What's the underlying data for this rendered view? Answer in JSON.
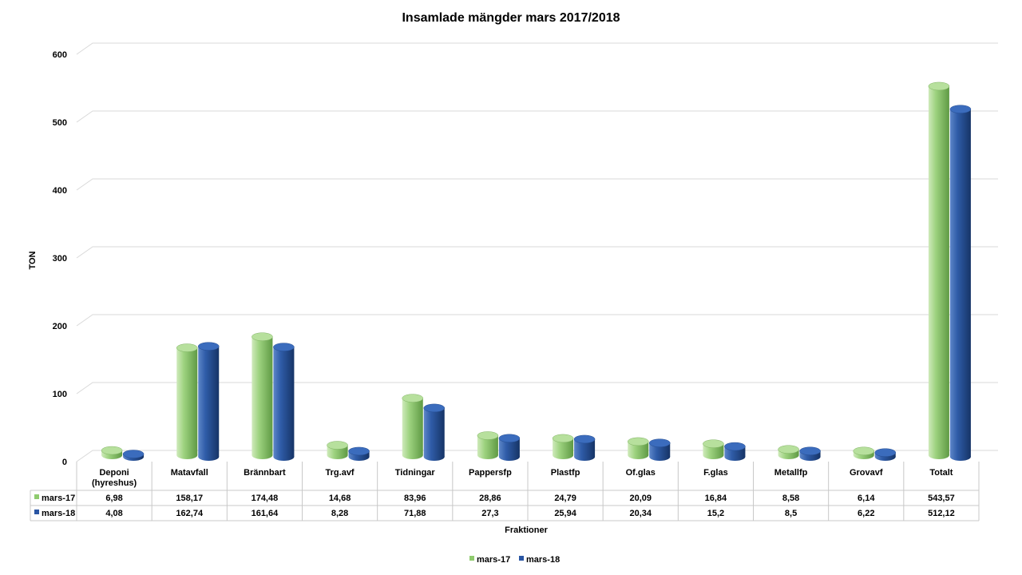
{
  "chart_data": {
    "type": "bar",
    "title": "Insamlade mängder mars 2017/2018",
    "xlabel": "Fraktioner",
    "ylabel": "TON",
    "ylim": [
      0,
      600
    ],
    "yticks": [
      "0",
      "100",
      "200",
      "300",
      "400",
      "500",
      "600"
    ],
    "categories": [
      [
        "Deponi",
        "(hyreshus)"
      ],
      [
        "Matavfall"
      ],
      [
        "Brännbart"
      ],
      [
        "Trg.avf"
      ],
      [
        "Tidningar"
      ],
      [
        "Pappersfp"
      ],
      [
        "Plastfp"
      ],
      [
        "Of.glas"
      ],
      [
        "F.glas"
      ],
      [
        "Metallfp"
      ],
      [
        "Grovavf"
      ],
      [
        "Totalt"
      ]
    ],
    "series": [
      {
        "name": "mars-17",
        "color": "#8fcb6e",
        "values": [
          6.98,
          158.17,
          174.48,
          14.68,
          83.96,
          28.86,
          24.79,
          20.09,
          16.84,
          8.58,
          6.14,
          543.57
        ],
        "labels": [
          "6,98",
          "158,17",
          "174,48",
          "14,68",
          "83,96",
          "28,86",
          "24,79",
          "20,09",
          "16,84",
          "8,58",
          "6,14",
          "543,57"
        ]
      },
      {
        "name": "mars-18",
        "color": "#2a56a4",
        "values": [
          4.08,
          162.74,
          161.64,
          8.28,
          71.88,
          27.3,
          25.94,
          20.34,
          15.2,
          8.5,
          6.22,
          512.12
        ],
        "labels": [
          "4,08",
          "162,74",
          "161,64",
          "8,28",
          "71,88",
          "27,3",
          "25,94",
          "20,34",
          "15,2",
          "8,5",
          "6,22",
          "512,12"
        ]
      }
    ],
    "grid": true,
    "legend": "bottom-center",
    "data_table": true
  }
}
